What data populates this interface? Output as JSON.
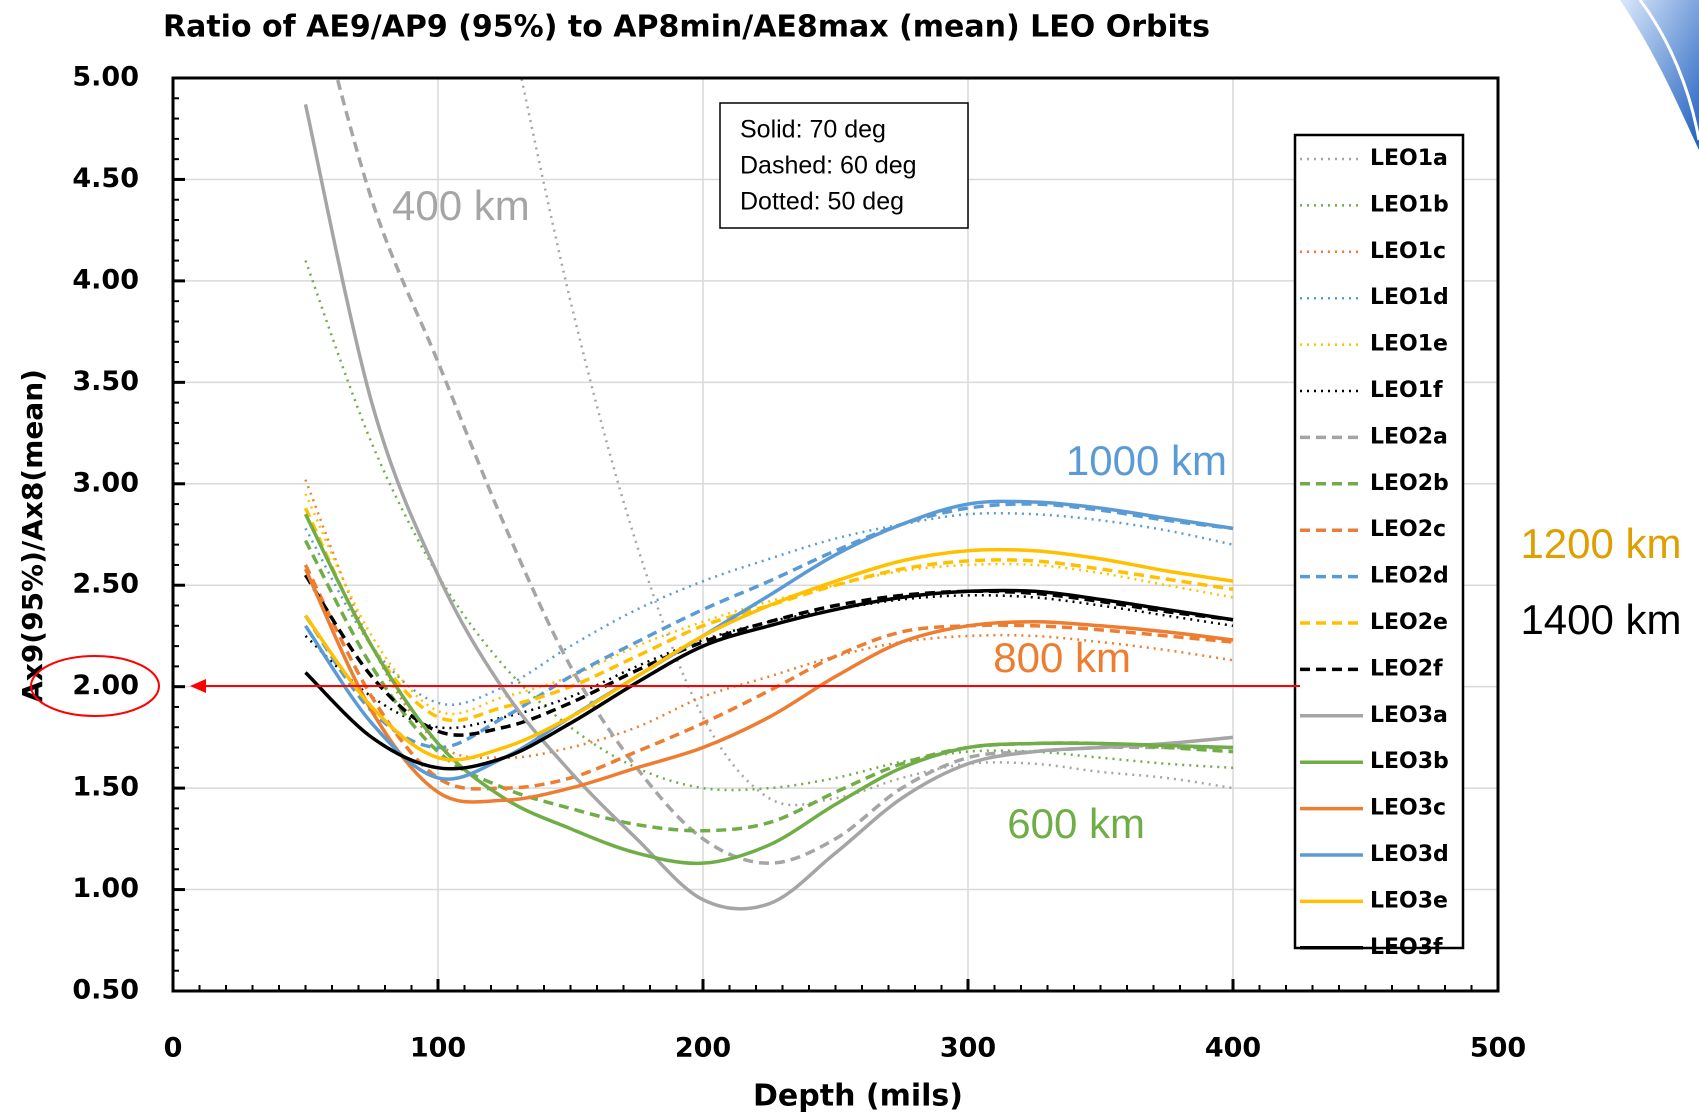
{
  "chart_data": {
    "type": "line",
    "title": "Ratio of AE9/AP9 (95%) to AP8min/AE8max (mean) LEO Orbits",
    "x_label": "Depth (mils)",
    "y_label": "Ax9(95%)/Ax8(mean)",
    "xlim": [
      0,
      500
    ],
    "xticks": [
      0,
      100,
      200,
      300,
      400,
      500
    ],
    "ylim": [
      0.5,
      5.0
    ],
    "yticks": [
      {
        "value": 0.5,
        "label": "0.50"
      },
      {
        "value": 1.0,
        "label": "1.00"
      },
      {
        "value": 1.5,
        "label": "1.50"
      },
      {
        "value": 2.0,
        "label": "2.00"
      },
      {
        "value": 2.5,
        "label": "2.50"
      },
      {
        "value": 3.0,
        "label": "3.00"
      },
      {
        "value": 3.5,
        "label": "3.50"
      },
      {
        "value": 4.0,
        "label": "4.00"
      },
      {
        "value": 4.5,
        "label": "4.50"
      },
      {
        "value": 5.0,
        "label": "5.00"
      }
    ],
    "grid": true,
    "legend": "right",
    "x": [
      50,
      75,
      100,
      125,
      150,
      175,
      200,
      225,
      250,
      275,
      300,
      325,
      350,
      375,
      400
    ],
    "series": [
      {
        "name": "LEO1a",
        "color": "#a5a5a5",
        "dash": "dotted",
        "values": [
          null,
          null,
          null,
          5.4,
          3.9,
          2.7,
          1.85,
          1.45,
          1.45,
          1.55,
          1.62,
          1.62,
          1.58,
          1.55,
          1.5
        ]
      },
      {
        "name": "LEO1b",
        "color": "#70ad47",
        "dash": "dotted",
        "values": [
          4.1,
          3.2,
          2.55,
          2.1,
          1.8,
          1.6,
          1.5,
          1.5,
          1.55,
          1.63,
          1.68,
          1.68,
          1.65,
          1.62,
          1.6
        ]
      },
      {
        "name": "LEO1c",
        "color": "#ed7d31",
        "dash": "dotted",
        "values": [
          3.02,
          2.2,
          1.72,
          1.65,
          1.7,
          1.8,
          1.95,
          2.05,
          2.15,
          2.22,
          2.25,
          2.25,
          2.22,
          2.18,
          2.13
        ]
      },
      {
        "name": "LEO1d",
        "color": "#5b9bd5",
        "dash": "dotted",
        "values": [
          2.78,
          2.2,
          1.92,
          2.0,
          2.2,
          2.38,
          2.52,
          2.63,
          2.73,
          2.8,
          2.85,
          2.85,
          2.82,
          2.77,
          2.7
        ]
      },
      {
        "name": "LEO1e",
        "color": "#ffc000",
        "dash": "dotted",
        "values": [
          2.95,
          2.25,
          1.88,
          1.95,
          2.05,
          2.2,
          2.32,
          2.42,
          2.5,
          2.57,
          2.6,
          2.6,
          2.56,
          2.5,
          2.44
        ]
      },
      {
        "name": "LEO1f",
        "color": "#000000",
        "dash": "dotted",
        "values": [
          2.25,
          1.95,
          1.8,
          1.85,
          1.95,
          2.1,
          2.23,
          2.32,
          2.38,
          2.43,
          2.45,
          2.44,
          2.4,
          2.35,
          2.3
        ]
      },
      {
        "name": "LEO2a",
        "color": "#a5a5a5",
        "dash": "dashed",
        "values": [
          5.6,
          4.4,
          3.6,
          2.8,
          2.1,
          1.6,
          1.25,
          1.13,
          1.25,
          1.5,
          1.65,
          1.68,
          1.7,
          1.7,
          1.7
        ]
      },
      {
        "name": "LEO2b",
        "color": "#70ad47",
        "dash": "dashed",
        "values": [
          2.72,
          2.1,
          1.68,
          1.5,
          1.4,
          1.32,
          1.29,
          1.33,
          1.48,
          1.62,
          1.7,
          1.72,
          1.72,
          1.7,
          1.68
        ]
      },
      {
        "name": "LEO2c",
        "color": "#ed7d31",
        "dash": "dashed",
        "values": [
          2.6,
          1.95,
          1.55,
          1.5,
          1.55,
          1.68,
          1.82,
          1.98,
          2.15,
          2.27,
          2.3,
          2.3,
          2.28,
          2.25,
          2.22
        ]
      },
      {
        "name": "LEO2d",
        "color": "#5b9bd5",
        "dash": "dashed",
        "values": [
          2.35,
          1.88,
          1.7,
          1.85,
          2.05,
          2.22,
          2.38,
          2.52,
          2.67,
          2.8,
          2.88,
          2.9,
          2.87,
          2.82,
          2.78
        ]
      },
      {
        "name": "LEO2e",
        "color": "#ffc000",
        "dash": "dashed",
        "values": [
          2.88,
          2.2,
          1.85,
          1.9,
          2.0,
          2.15,
          2.3,
          2.4,
          2.5,
          2.58,
          2.62,
          2.62,
          2.58,
          2.53,
          2.48
        ]
      },
      {
        "name": "LEO2f",
        "color": "#000000",
        "dash": "dashed",
        "values": [
          2.55,
          2.05,
          1.78,
          1.8,
          1.92,
          2.08,
          2.22,
          2.32,
          2.4,
          2.45,
          2.47,
          2.46,
          2.42,
          2.37,
          2.33
        ]
      },
      {
        "name": "LEO3a",
        "color": "#a5a5a5",
        "dash": "solid",
        "values": [
          4.87,
          3.4,
          2.55,
          1.98,
          1.58,
          1.25,
          0.95,
          0.93,
          1.18,
          1.45,
          1.62,
          1.68,
          1.7,
          1.72,
          1.75
        ]
      },
      {
        "name": "LEO3b",
        "color": "#70ad47",
        "dash": "solid",
        "values": [
          2.85,
          2.2,
          1.72,
          1.45,
          1.3,
          1.18,
          1.13,
          1.22,
          1.42,
          1.6,
          1.7,
          1.72,
          1.72,
          1.71,
          1.7
        ]
      },
      {
        "name": "LEO3c",
        "color": "#ed7d31",
        "dash": "solid",
        "values": [
          2.58,
          1.88,
          1.48,
          1.44,
          1.5,
          1.6,
          1.7,
          1.85,
          2.05,
          2.22,
          2.3,
          2.32,
          2.3,
          2.27,
          2.23
        ]
      },
      {
        "name": "LEO3d",
        "color": "#5b9bd5",
        "dash": "solid",
        "values": [
          2.3,
          1.82,
          1.55,
          1.65,
          1.85,
          2.05,
          2.25,
          2.45,
          2.65,
          2.8,
          2.9,
          2.91,
          2.88,
          2.83,
          2.78
        ]
      },
      {
        "name": "LEO3e",
        "color": "#ffc000",
        "dash": "solid",
        "values": [
          2.35,
          1.9,
          1.65,
          1.7,
          1.85,
          2.05,
          2.25,
          2.4,
          2.52,
          2.62,
          2.67,
          2.67,
          2.63,
          2.57,
          2.52
        ]
      },
      {
        "name": "LEO3f",
        "color": "#000000",
        "dash": "solid",
        "values": [
          2.07,
          1.75,
          1.6,
          1.65,
          1.82,
          2.02,
          2.2,
          2.3,
          2.38,
          2.44,
          2.47,
          2.47,
          2.43,
          2.38,
          2.33
        ]
      }
    ],
    "note": [
      "Solid: 70 deg",
      "Dashed: 60 deg",
      "Dotted: 50 deg"
    ],
    "annotations": [
      {
        "text": "400 km",
        "color": "#a5a5a5"
      },
      {
        "text": "1000 km",
        "color": "#5b9bd5"
      },
      {
        "text": "800 km",
        "color": "#ed7d31"
      },
      {
        "text": "600 km",
        "color": "#70ad47"
      },
      {
        "text": "1200 km",
        "color": "#dda000"
      },
      {
        "text": "1400 km",
        "color": "#000000"
      }
    ]
  }
}
